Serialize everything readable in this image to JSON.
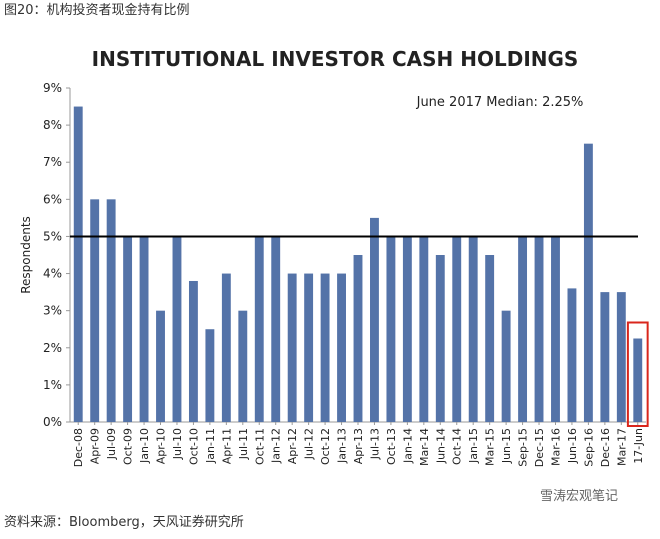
{
  "header": {
    "caption": "图20：机构投资者现金持有比例"
  },
  "chart_data": {
    "type": "bar",
    "title": "INSTITUTIONAL INVESTOR CASH HOLDINGS",
    "y_label": "Respondents",
    "annotation": "June 2017  Median: 2.25%",
    "categories": [
      "Dec-08",
      "Apr-09",
      "Jul-09",
      "Oct-09",
      "Jan-10",
      "Apr-10",
      "Jul-10",
      "Oct-10",
      "Jan-11",
      "Apr-11",
      "Jul-11",
      "Oct-11",
      "Jan-12",
      "Apr-12",
      "Jul-12",
      "Oct-12",
      "Jan-13",
      "Apr-13",
      "Jul-13",
      "Oct-13",
      "Jan-14",
      "Mar-14",
      "Jun-14",
      "Oct-14",
      "Jan-15",
      "Mar-15",
      "Jun-15",
      "Sep-15",
      "Dec-15",
      "Mar-16",
      "Jun-16",
      "Sep-16",
      "Dec-16",
      "Mar-17",
      "17-Jun"
    ],
    "values": [
      8.5,
      6,
      6,
      5,
      5,
      3,
      5,
      3.8,
      2.5,
      4,
      3,
      5,
      5,
      4,
      4,
      4,
      4,
      4.5,
      5.5,
      5,
      5,
      5,
      4.5,
      5,
      5,
      4.5,
      3,
      5,
      5,
      5,
      3.6,
      7.5,
      3.5,
      3.5,
      2.25
    ],
    "color": "#5473a8",
    "reference_line": 5,
    "ylim": [
      0,
      9
    ],
    "yticks": [
      {
        "value": 0,
        "label": "0%"
      },
      {
        "value": 1,
        "label": "1%"
      },
      {
        "value": 2,
        "label": "2%"
      },
      {
        "value": 3,
        "label": "3%"
      },
      {
        "value": 4,
        "label": "4%"
      },
      {
        "value": 5,
        "label": "5%"
      },
      {
        "value": 6,
        "label": "6%"
      },
      {
        "value": 7,
        "label": "7%"
      },
      {
        "value": 8,
        "label": "8%"
      },
      {
        "value": 9,
        "label": "9%"
      }
    ]
  },
  "watermark": "雪涛宏观笔记",
  "footer": {
    "source": "资料来源：Bloomberg，天风证券研究所"
  }
}
